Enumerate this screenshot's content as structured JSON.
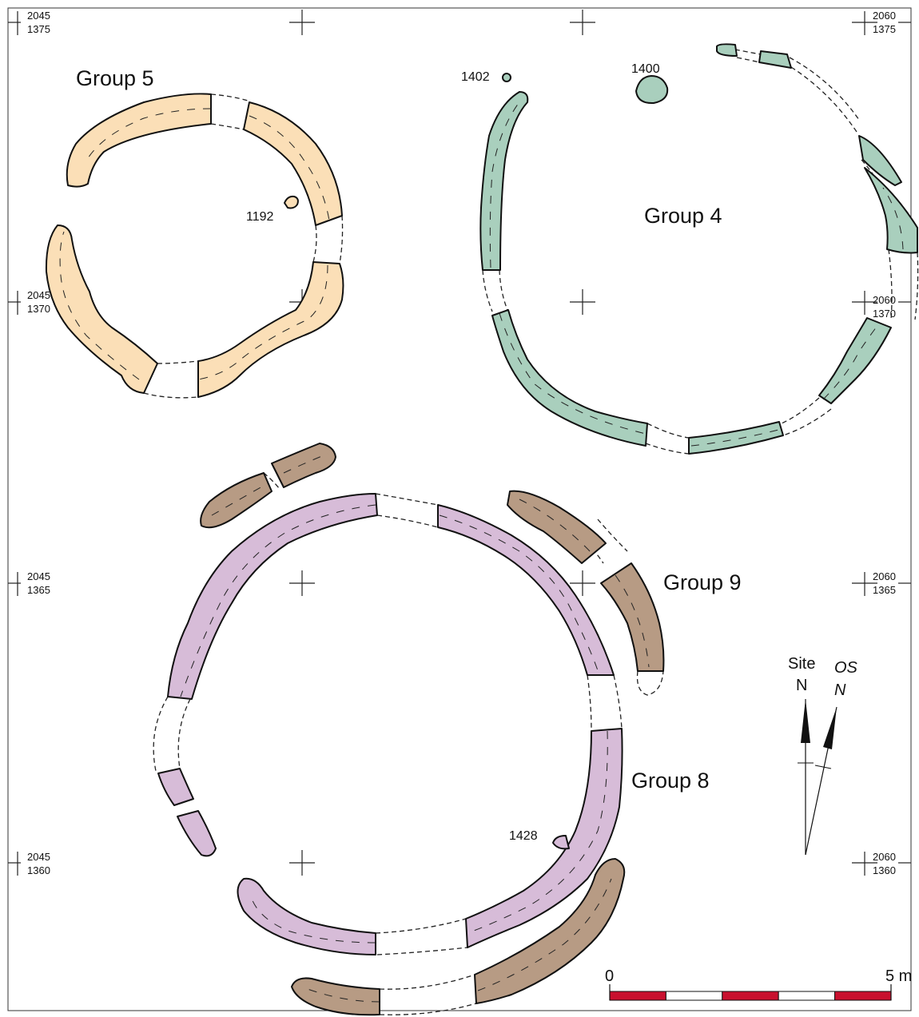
{
  "colors": {
    "group5": "#fbdfb7",
    "group4": "#a9cfbd",
    "group9": "#b79b84",
    "group8": "#d7bcd8",
    "scale_red": "#c8102e",
    "scale_white": "#ffffff"
  },
  "groups": {
    "group5": "Group 5",
    "group4": "Group 4",
    "group9": "Group 9",
    "group8": "Group 8"
  },
  "features": {
    "f1192": "1192",
    "f1402": "1402",
    "f1400": "1400",
    "f1428": "1428"
  },
  "grid": {
    "tl": {
      "e": "2045",
      "n": "1375"
    },
    "tr": {
      "e": "2060",
      "n": "1375"
    },
    "ml": {
      "e": "2045",
      "n": "1370"
    },
    "mr": {
      "e": "2060",
      "n": "1370"
    },
    "ll": {
      "e": "2045",
      "n": "1365"
    },
    "lr": {
      "e": "2060",
      "n": "1365"
    },
    "bl": {
      "e": "2045",
      "n": "1360"
    },
    "br": {
      "e": "2060",
      "n": "1360"
    }
  },
  "north": {
    "site_line1": "Site",
    "site_line2": "N",
    "os_line1": "OS",
    "os_line2": "N"
  },
  "scale": {
    "start": "0",
    "end": "5 m",
    "length_m": 5,
    "divisions": 5
  }
}
